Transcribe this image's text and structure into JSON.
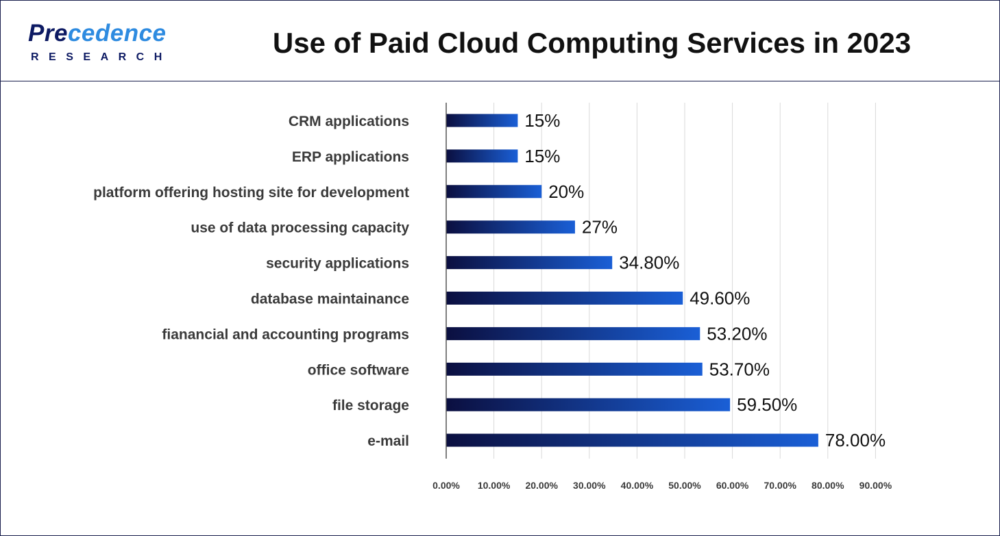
{
  "brand": {
    "word_main": "Pre",
    "word_accent": "cedence",
    "sub": "RESEARCH"
  },
  "chart_data": {
    "type": "bar",
    "orientation": "horizontal",
    "title": "Use of Paid Cloud Computing Services in 2023",
    "categories": [
      "CRM applications",
      "ERP applications",
      "platform offering hosting site for development",
      "use of data processing capacity",
      "security applications",
      "database maintainance",
      "fianancial and accounting programs",
      "office software",
      "file storage",
      "e-mail"
    ],
    "values": [
      15,
      15,
      20,
      27,
      34.8,
      49.6,
      53.2,
      53.7,
      59.5,
      78.0
    ],
    "value_labels": [
      "15%",
      "15%",
      "20%",
      "27%",
      "34.80%",
      "49.60%",
      "53.20%",
      "53.70%",
      "59.50%",
      "78.00%"
    ],
    "xlim": [
      0,
      90
    ],
    "x_ticks": [
      0,
      10,
      20,
      30,
      40,
      50,
      60,
      70,
      80,
      90
    ],
    "x_tick_labels": [
      "0.00%",
      "10.00%",
      "20.00%",
      "30.00%",
      "40.00%",
      "50.00%",
      "60.00%",
      "70.00%",
      "80.00%",
      "90.00%"
    ],
    "grid": true,
    "legend": "none",
    "bar_gradient": [
      "#0b0f40",
      "#1a5fd6"
    ]
  }
}
